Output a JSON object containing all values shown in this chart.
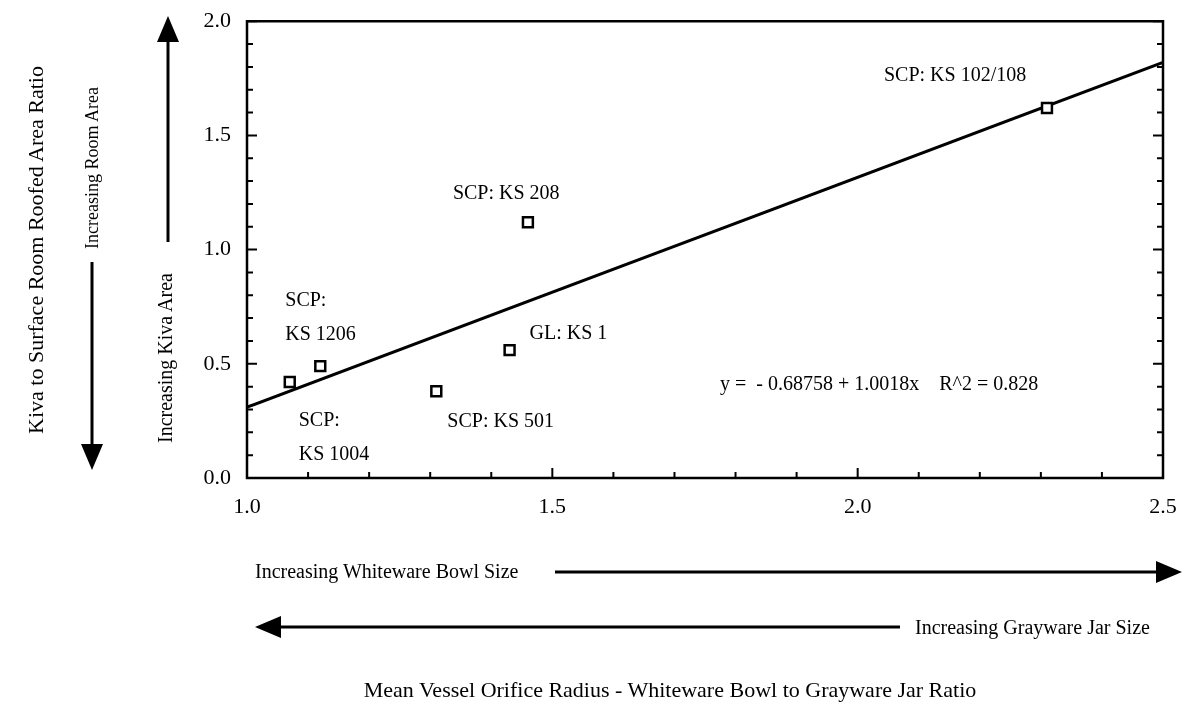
{
  "chart_data": {
    "type": "scatter",
    "xlim": [
      1,
      2.5
    ],
    "ylim": [
      0,
      2
    ],
    "xticks": [
      {
        "value": 1,
        "label": "1.0"
      },
      {
        "value": 1.1,
        "label": null
      },
      {
        "value": 1.2,
        "label": null
      },
      {
        "value": 1.3,
        "label": null
      },
      {
        "value": 1.4,
        "label": null
      },
      1.5,
      {
        "value": 1.6,
        "label": null
      },
      {
        "value": 1.7,
        "label": null
      },
      {
        "value": 1.8,
        "label": null
      },
      {
        "value": 1.9,
        "label": null
      },
      {
        "value": 2,
        "label": "2.0"
      },
      {
        "value": 2.1,
        "label": null
      },
      {
        "value": 2.2,
        "label": null
      },
      {
        "value": 2.3,
        "label": null
      },
      {
        "value": 2.4,
        "label": null
      },
      2.5
    ],
    "yticks": [
      {
        "value": 0,
        "label": "0.0"
      },
      {
        "value": 0.1,
        "label": null
      },
      {
        "value": 0.2,
        "label": null
      },
      {
        "value": 0.3,
        "label": null
      },
      {
        "value": 0.4,
        "label": null
      },
      0.5,
      {
        "value": 0.6,
        "label": null
      },
      {
        "value": 0.7,
        "label": null
      },
      {
        "value": 0.8,
        "label": null
      },
      {
        "value": 0.9,
        "label": null
      },
      {
        "value": 1,
        "label": "1.0"
      },
      {
        "value": 1.1,
        "label": null
      },
      {
        "value": 1.2,
        "label": null
      },
      {
        "value": 1.3,
        "label": null
      },
      {
        "value": 1.4,
        "label": null
      },
      1.5,
      {
        "value": 1.6,
        "label": null
      },
      {
        "value": 1.7,
        "label": null
      },
      {
        "value": 1.8,
        "label": null
      },
      {
        "value": 1.9,
        "label": null
      },
      {
        "value": 2,
        "label": "2.0"
      }
    ],
    "grid": false,
    "series": [
      {
        "color": "#000000",
        "marker": "square",
        "x": [
          1.07,
          1.12,
          1.31,
          1.43,
          1.46,
          2.31
        ],
        "values": [
          0.42,
          0.49,
          0.38,
          0.56,
          1.12,
          1.62
        ]
      },
      {
        "type": "line",
        "color": "#000000",
        "marker": "none",
        "line_style": "solid",
        "x": [
          1,
          2.5
        ],
        "values": [
          0.31,
          1.82
        ]
      }
    ],
    "annotations": [
      {
        "text": "SCP:\nKS 1004",
        "x": 1.07,
        "y": 0.42
      },
      {
        "text": "SCP:\nKS 1206",
        "x": 1.12,
        "y": 0.49
      },
      {
        "text": "SCP: KS 501",
        "x": 1.31,
        "y": 0.38
      },
      {
        "text": "GL: KS 1",
        "x": 1.43,
        "y": 0.56
      },
      {
        "text": "SCP: KS 208",
        "x": 1.46,
        "y": 1.12
      },
      {
        "text": "SCP: KS 102/108",
        "x": 2.31,
        "y": 1.62
      },
      "y =  - 0.68758 + 1.0018x    R^2 = 0.828",
      "Increasing Room Area",
      "Increasing Kiva Area",
      "Increasing Whiteware Bowl Size",
      "Increasing Grayware Jar Size",
      "Kiva to Surface Room Roofed Area Ratio",
      "Mean Vessel Orifice Radius - Whiteware Bowl to Grayware Jar Ratio"
    ]
  }
}
